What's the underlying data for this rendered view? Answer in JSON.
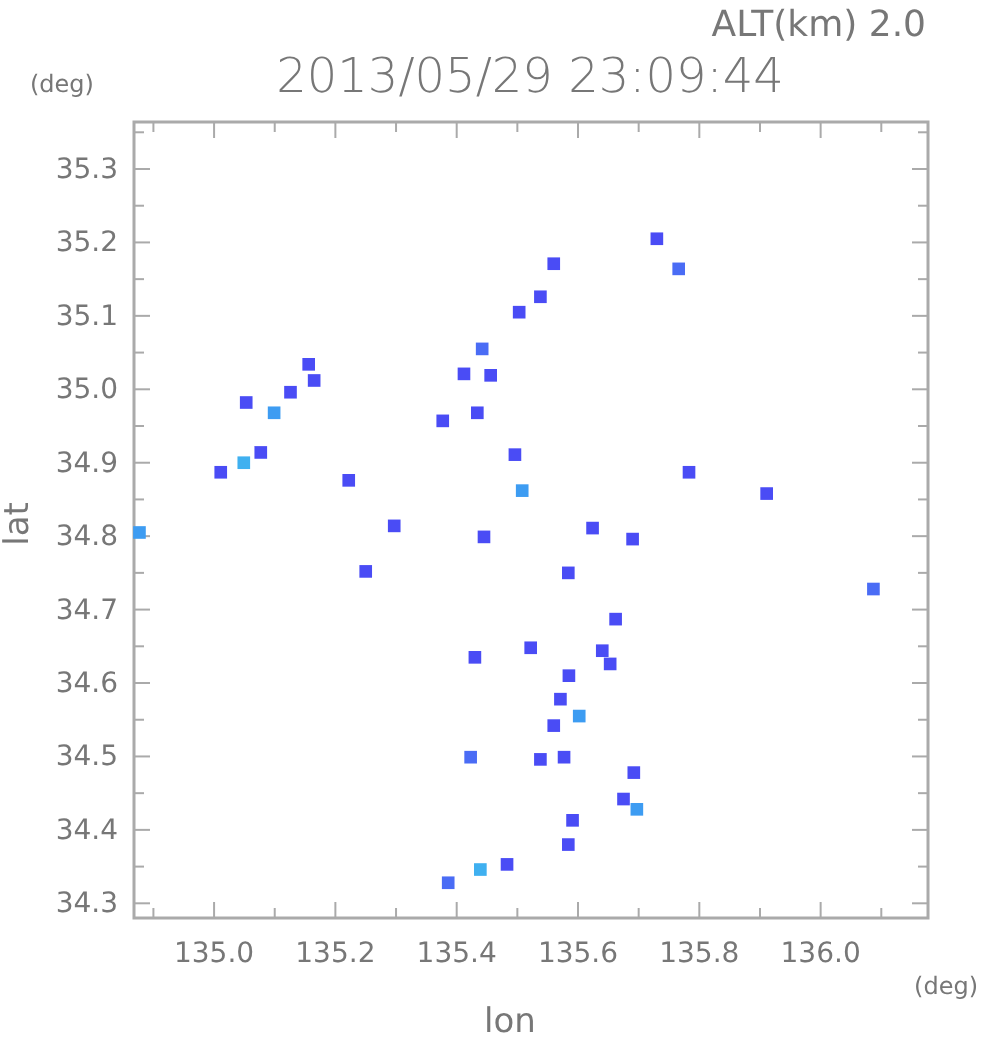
{
  "chart_data": {
    "type": "scatter",
    "title": "2013/05/29 23:09:44",
    "xlabel": "lon",
    "ylabel": "lat",
    "annotations": [
      "ALT(km) 2.0",
      "(deg)",
      "(deg)"
    ],
    "xlim": [
      134.868,
      136.177
    ],
    "ylim": [
      34.28,
      35.364
    ],
    "xticks": [
      {
        "value": 134.9,
        "label": null
      },
      {
        "value": 135.0,
        "label": "135.0"
      },
      {
        "value": 135.1,
        "label": null
      },
      {
        "value": 135.2,
        "label": "135.2"
      },
      {
        "value": 135.3,
        "label": null
      },
      {
        "value": 135.4,
        "label": "135.4"
      },
      {
        "value": 135.5,
        "label": null
      },
      {
        "value": 135.6,
        "label": "135.6"
      },
      {
        "value": 135.7,
        "label": null
      },
      {
        "value": 135.8,
        "label": "135.8"
      },
      {
        "value": 135.9,
        "label": null
      },
      {
        "value": 136.0,
        "label": "136.0"
      },
      {
        "value": 136.1,
        "label": null
      }
    ],
    "yticks": [
      {
        "value": 34.3,
        "label": "34.3"
      },
      {
        "value": 34.35,
        "label": null
      },
      {
        "value": 34.4,
        "label": "34.4"
      },
      {
        "value": 34.45,
        "label": null
      },
      {
        "value": 34.5,
        "label": "34.5"
      },
      {
        "value": 34.55,
        "label": null
      },
      {
        "value": 34.6,
        "label": "34.6"
      },
      {
        "value": 34.65,
        "label": null
      },
      {
        "value": 34.7,
        "label": "34.7"
      },
      {
        "value": 34.75,
        "label": null
      },
      {
        "value": 34.8,
        "label": "34.8"
      },
      {
        "value": 34.85,
        "label": null
      },
      {
        "value": 34.9,
        "label": "34.9"
      },
      {
        "value": 34.95,
        "label": null
      },
      {
        "value": 35.0,
        "label": "35.0"
      },
      {
        "value": 35.05,
        "label": null
      },
      {
        "value": 35.1,
        "label": "35.1"
      },
      {
        "value": 35.15,
        "label": null
      },
      {
        "value": 35.2,
        "label": "35.2"
      },
      {
        "value": 35.25,
        "label": null
      },
      {
        "value": 35.3,
        "label": "35.3"
      },
      {
        "value": 35.35,
        "label": null
      }
    ],
    "grid": false,
    "marker": "square",
    "x": [
      134.877,
      135.049,
      135.011,
      135.077,
      135.099,
      135.053,
      135.126,
      135.165,
      135.156,
      135.222,
      135.297,
      135.25,
      135.377,
      135.412,
      135.442,
      135.456,
      135.434,
      135.503,
      135.538,
      135.56,
      135.496,
      135.508,
      135.445,
      135.584,
      135.624,
      135.73,
      135.766,
      135.783,
      135.911,
      136.087,
      135.69,
      135.43,
      135.522,
      135.662,
      135.64,
      135.653,
      135.585,
      135.571,
      135.602,
      135.56,
      135.577,
      135.538,
      135.423,
      135.692,
      135.675,
      135.697,
      135.591,
      135.584,
      135.483,
      135.439,
      135.386
    ],
    "values": [
      34.805,
      34.9,
      34.887,
      34.914,
      34.968,
      34.982,
      34.996,
      35.012,
      35.034,
      34.876,
      34.814,
      34.752,
      34.957,
      35.021,
      35.055,
      35.019,
      34.968,
      35.105,
      35.126,
      35.171,
      34.911,
      34.862,
      34.799,
      34.75,
      34.811,
      35.205,
      35.164,
      34.887,
      34.858,
      34.728,
      34.796,
      34.635,
      34.648,
      34.687,
      34.644,
      34.626,
      34.61,
      34.578,
      34.555,
      34.542,
      34.499,
      34.496,
      34.499,
      34.478,
      34.442,
      34.428,
      34.413,
      34.38,
      34.353,
      34.346,
      34.328
    ],
    "colors": [
      "#3d9cf2",
      "#3fb0f0",
      "#4a4cf5",
      "#4a4cf5",
      "#3d9cf2",
      "#4a4cf5",
      "#4a4cf5",
      "#4a4cf5",
      "#4a4cf5",
      "#4a4cf5",
      "#4a4cf5",
      "#4a4cf5",
      "#4a4cf5",
      "#4a4cf5",
      "#4a6cf5",
      "#4a4cf5",
      "#4a4cf5",
      "#4a4cf5",
      "#4a4cf5",
      "#4a4cf5",
      "#4a4cf5",
      "#3d9cf2",
      "#4a4cf5",
      "#4a4cf5",
      "#4a4cf5",
      "#4a4cf5",
      "#4a6cf5",
      "#4a4cf5",
      "#4a4cf5",
      "#4a6cf5",
      "#4a4cf5",
      "#4a4cf5",
      "#4a4cf5",
      "#4a4cf5",
      "#4a4cf5",
      "#4a4cf5",
      "#4a4cf5",
      "#4a4cf5",
      "#3d9cf2",
      "#4a4cf5",
      "#4a4cf5",
      "#4a4cf5",
      "#4a6cf5",
      "#4a4cf5",
      "#4a4cf5",
      "#3d9cf2",
      "#4a4cf5",
      "#4a4cf5",
      "#4a4cf5",
      "#3fb0f0",
      "#4a6cf5"
    ]
  }
}
